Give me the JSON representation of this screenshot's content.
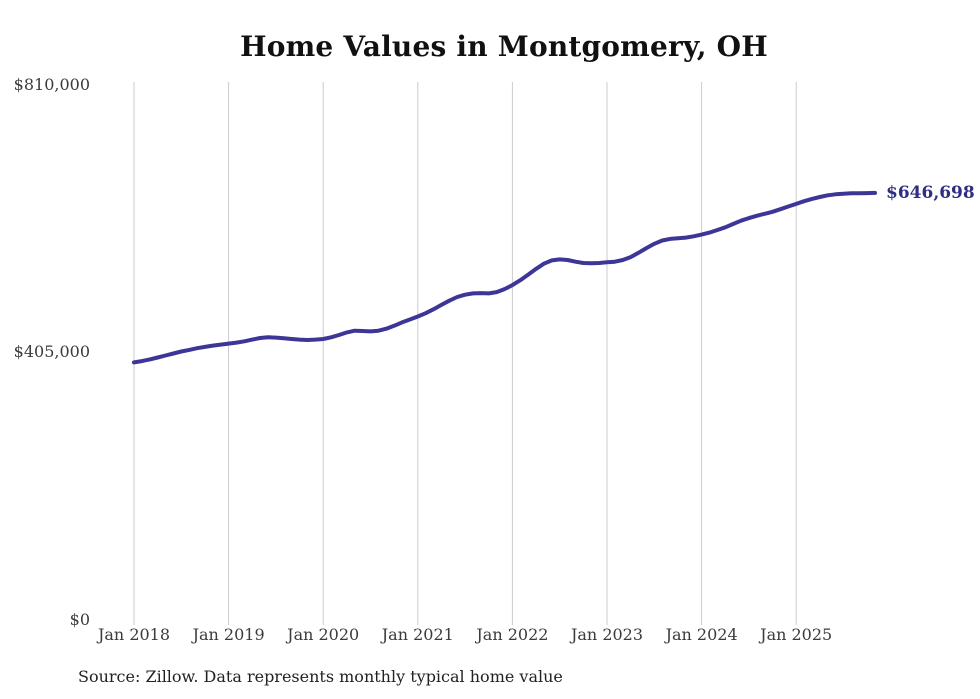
{
  "title": "Home Values in Montgomery, OH",
  "end_label": "$646,698",
  "source_note": "Source: Zillow. Data represents monthly typical home value",
  "colors": {
    "background": "#ffffff",
    "line": "#3c3696",
    "grid": "#cbcbcb",
    "title_text": "#111111",
    "axis_text": "#3b3b3b",
    "end_label_text": "#312d83",
    "source_text": "#222222"
  },
  "chart_data": {
    "type": "line",
    "title": "Home Values in Montgomery, OH",
    "xlabel": "",
    "ylabel": "",
    "unit": "USD",
    "ylim": [
      0,
      810000
    ],
    "grid": "vertical-only",
    "legend": "none",
    "y_tick_values": [
      810000,
      405000,
      0
    ],
    "y_tick_labels": [
      "$810,000",
      "$405,000",
      "$0"
    ],
    "x_tick_labels": [
      "Jan 2018",
      "Jan 2019",
      "Jan 2020",
      "Jan 2021",
      "Jan 2022",
      "Jan 2023",
      "Jan 2024",
      "Jan 2025"
    ],
    "annotation": {
      "label": "$646,698",
      "month": "2025-11",
      "value": 646698
    },
    "series": [
      {
        "name": "Monthly typical home value",
        "start_month": "2018-01",
        "end_month": "2025-11",
        "frequency": "monthly",
        "values": [
          390000,
          392000,
          394500,
          397500,
          400500,
          403500,
          406500,
          409000,
          411500,
          413500,
          415500,
          417000,
          418500,
          420000,
          422000,
          424500,
          427000,
          428000,
          427500,
          426500,
          425500,
          424500,
          424000,
          424500,
          425500,
          428000,
          431500,
          435500,
          438000,
          437500,
          437000,
          438000,
          441000,
          445500,
          450500,
          455000,
          459500,
          464500,
          470500,
          477000,
          483500,
          489000,
          492500,
          494500,
          495000,
          494500,
          496500,
          501000,
          507000,
          514500,
          523000,
          531500,
          539500,
          544500,
          546000,
          545000,
          542500,
          540500,
          540000,
          540500,
          541500,
          542500,
          545000,
          549500,
          556000,
          563000,
          569500,
          574500,
          577000,
          578000,
          579000,
          581000,
          583500,
          586500,
          590500,
          594500,
          599500,
          604500,
          608500,
          612000,
          615000,
          618000,
          622000,
          626000,
          630000,
          634000,
          637500,
          640500,
          643000,
          644500,
          645500,
          646000,
          646200,
          646400,
          646698
        ]
      }
    ]
  }
}
